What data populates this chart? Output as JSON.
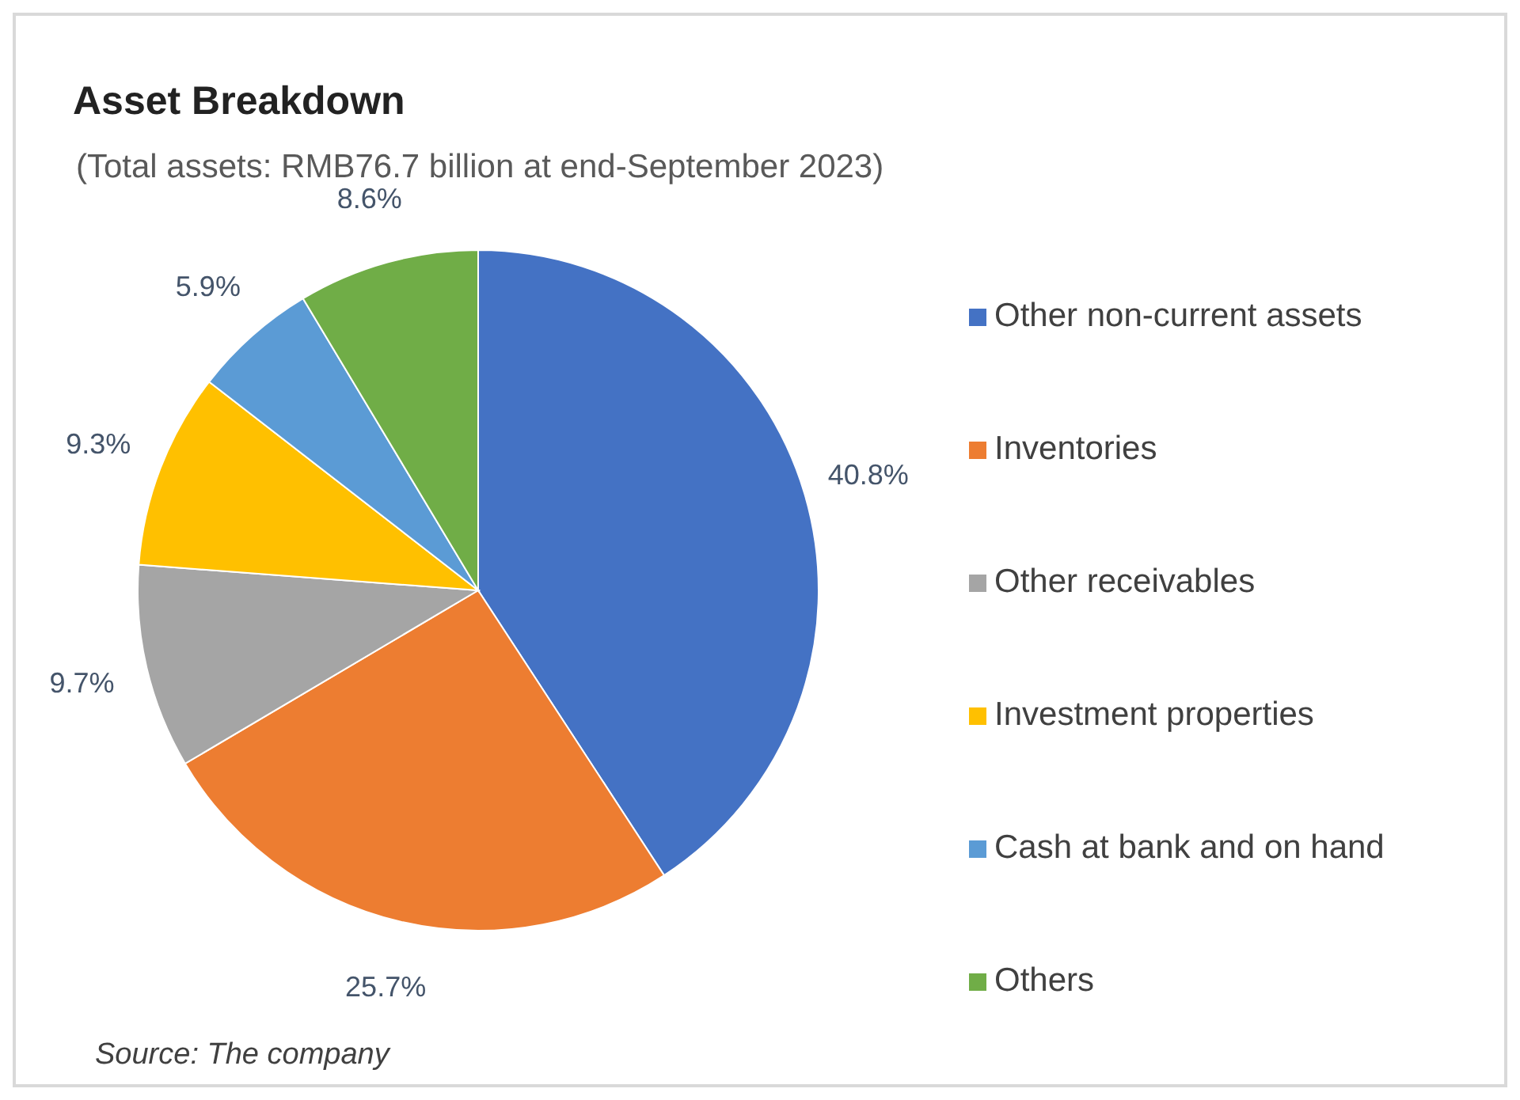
{
  "chart_data": {
    "type": "pie",
    "title": "Asset Breakdown",
    "subtitle": "(Total assets: RMB76.7 billion at end-September 2023)",
    "categories": [
      "Other non-current assets",
      "Inventories",
      "Other receivables",
      "Investment properties",
      "Cash at bank and on hand",
      "Others"
    ],
    "values": [
      40.8,
      25.7,
      9.7,
      9.3,
      5.9,
      8.6
    ],
    "colors": [
      "#4472c4",
      "#ed7d31",
      "#a5a5a5",
      "#ffc000",
      "#5b9bd5",
      "#70ad47"
    ],
    "value_labels": [
      "40.8%",
      "25.7%",
      "9.7%",
      "9.3%",
      "5.9%",
      "8.6%"
    ],
    "legend": "right",
    "annotations": [
      "Source: The company"
    ]
  }
}
